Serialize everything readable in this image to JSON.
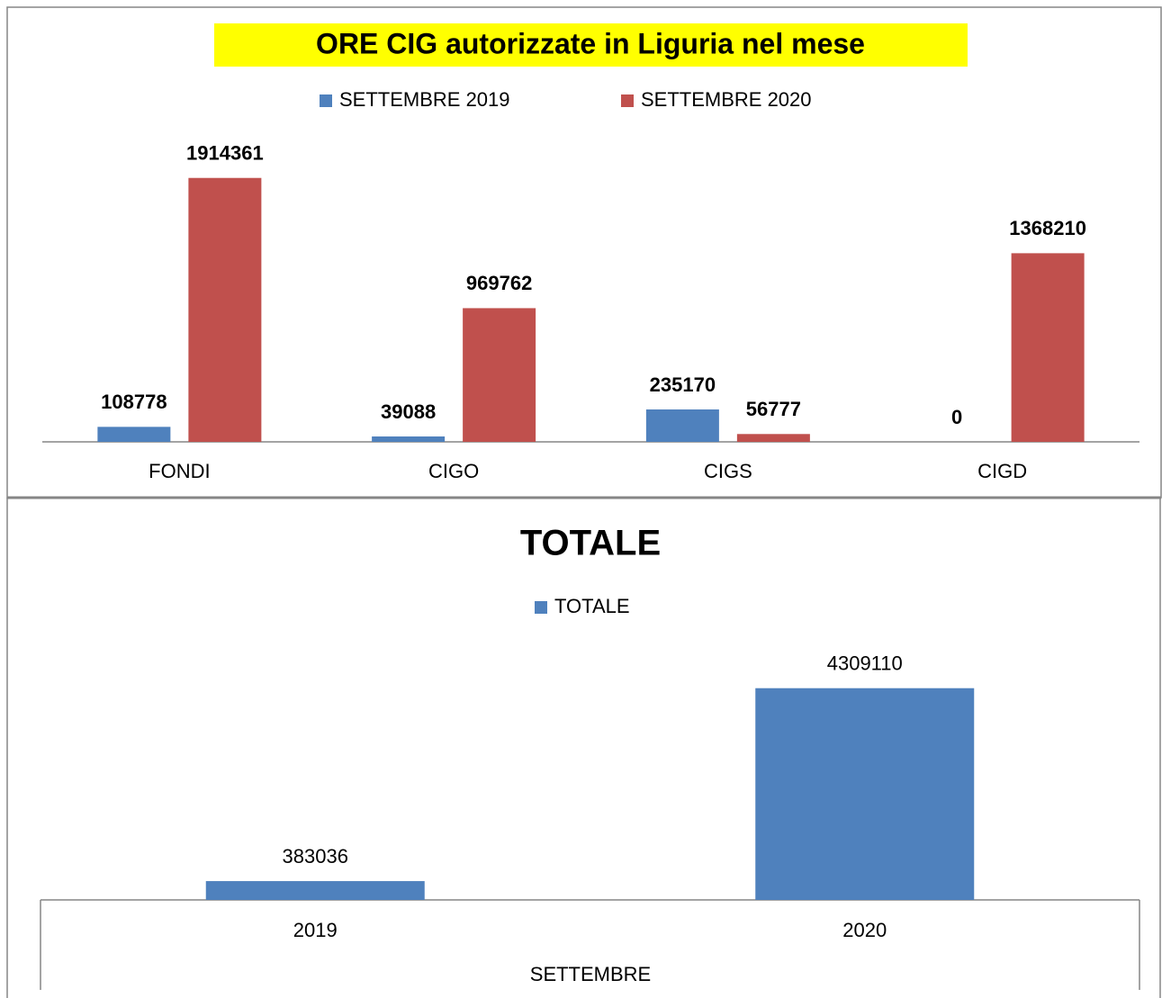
{
  "chart_data": [
    {
      "type": "bar",
      "title": "ORE CIG autorizzate in Liguria nel mese",
      "categories": [
        "FONDI",
        "CIGO",
        "CIGS",
        "CIGD"
      ],
      "series": [
        {
          "name": "SETTEMBRE 2019",
          "color": "#4f81bd",
          "label_color": "#0070c0",
          "values": [
            108778,
            39088,
            235170,
            0
          ]
        },
        {
          "name": "SETTEMBRE 2020",
          "color": "#c0504d",
          "label_color": "#ff0000",
          "values": [
            1914361,
            969762,
            56777,
            1368210
          ]
        }
      ],
      "ylim": [
        0,
        2500000
      ],
      "legend": "top",
      "grid": false
    },
    {
      "type": "bar",
      "title": "TOTALE",
      "xlabel": "SETTEMBRE",
      "categories": [
        "2019",
        "2020"
      ],
      "series": [
        {
          "name": "TOTALE",
          "color": "#4f81bd",
          "label_color": "#000000",
          "values": [
            383036,
            4309110
          ]
        }
      ],
      "ylim": [
        0,
        5000000
      ],
      "legend": "top",
      "grid": false
    }
  ]
}
